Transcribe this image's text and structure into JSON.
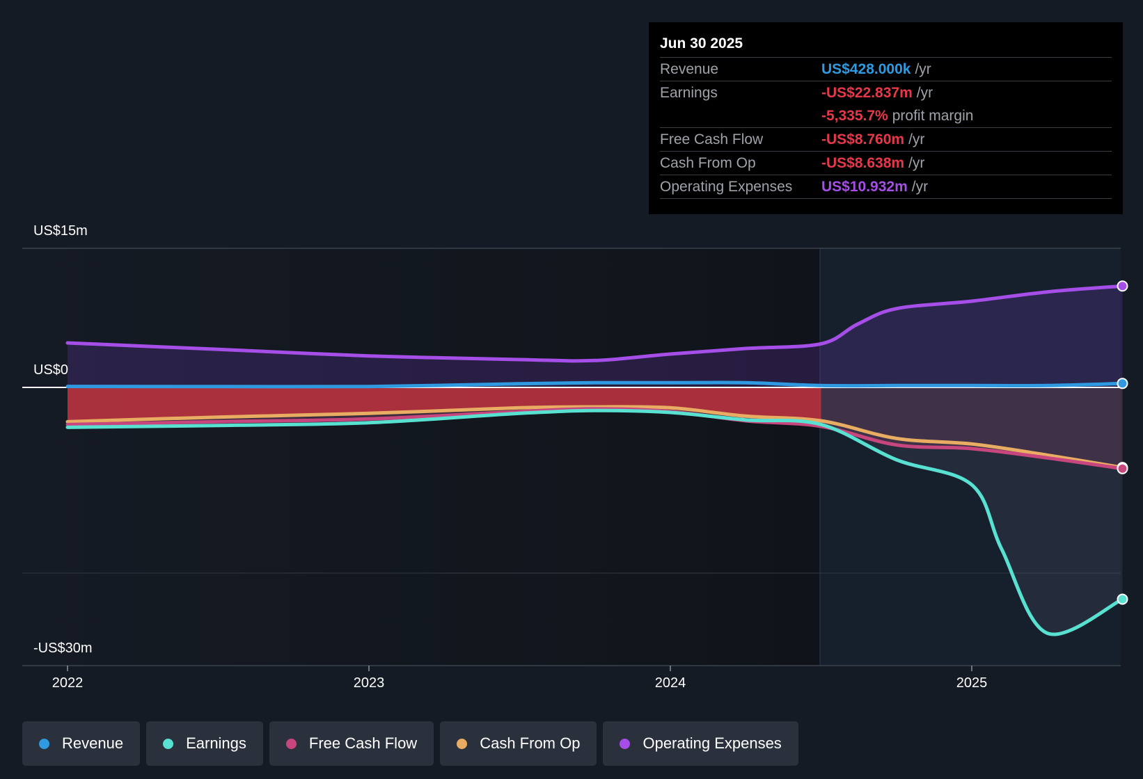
{
  "tooltip": {
    "date": "Jun 30 2025",
    "rows": [
      {
        "label": "Revenue",
        "value": "US$428.000k",
        "unit": "/yr",
        "color": "#2f9ae0"
      },
      {
        "label": "Earnings",
        "value": "-US$22.837m",
        "unit": "/yr",
        "color": "#e5384a"
      },
      {
        "label": "",
        "value": "-5,335.7%",
        "unit": "profit margin",
        "color": "#e5384a"
      },
      {
        "label": "Free Cash Flow",
        "value": "-US$8.760m",
        "unit": "/yr",
        "color": "#e5384a"
      },
      {
        "label": "Cash From Op",
        "value": "-US$8.638m",
        "unit": "/yr",
        "color": "#e5384a"
      },
      {
        "label": "Operating Expenses",
        "value": "US$10.932m",
        "unit": "/yr",
        "color": "#a64ee8"
      }
    ]
  },
  "legend": [
    {
      "label": "Revenue",
      "color": "#2f9ae0"
    },
    {
      "label": "Earnings",
      "color": "#58e1d1"
    },
    {
      "label": "Free Cash Flow",
      "color": "#c8467e"
    },
    {
      "label": "Cash From Op",
      "color": "#e8ad62"
    },
    {
      "label": "Operating Expenses",
      "color": "#a64ee8"
    }
  ],
  "chart_data": {
    "type": "line",
    "title": "",
    "xlabel": "",
    "ylabel": "",
    "y_axis_labels": {
      "top": "US$15m",
      "zero": "US$0",
      "bottom": "-US$30m"
    },
    "x_ticks": [
      2022,
      2023,
      2024,
      2025
    ],
    "xlim": [
      2021.85,
      2025.5
    ],
    "ylim": [
      -30,
      15
    ],
    "forecast_start": 2024.5,
    "series": [
      {
        "name": "Operating Expenses",
        "color": "#a64ee8",
        "x": [
          2022.0,
          2022.5,
          2023.0,
          2023.5,
          2023.75,
          2024.0,
          2024.25,
          2024.5,
          2024.62,
          2024.75,
          2025.0,
          2025.25,
          2025.5
        ],
        "values": [
          4.8,
          4.1,
          3.4,
          3.0,
          2.9,
          3.6,
          4.2,
          4.7,
          6.8,
          8.5,
          9.3,
          10.3,
          10.932
        ]
      },
      {
        "name": "Revenue",
        "color": "#2f9ae0",
        "x": [
          2022.0,
          2022.5,
          2023.0,
          2023.5,
          2023.75,
          2024.0,
          2024.25,
          2024.5,
          2024.75,
          2025.0,
          2025.25,
          2025.5
        ],
        "values": [
          0.1,
          0.1,
          0.1,
          0.4,
          0.5,
          0.5,
          0.5,
          0.2,
          0.2,
          0.2,
          0.2,
          0.428
        ]
      },
      {
        "name": "Cash From Op",
        "color": "#e8ad62",
        "x": [
          2022.0,
          2022.5,
          2023.0,
          2023.5,
          2023.75,
          2024.0,
          2024.25,
          2024.5,
          2024.75,
          2025.0,
          2025.25,
          2025.5
        ],
        "values": [
          -3.7,
          -3.2,
          -2.8,
          -2.2,
          -2.1,
          -2.2,
          -3.1,
          -3.6,
          -5.5,
          -6.1,
          -7.3,
          -8.638
        ]
      },
      {
        "name": "Free Cash Flow",
        "color": "#c8467e",
        "x": [
          2022.0,
          2022.5,
          2023.0,
          2023.5,
          2023.75,
          2024.0,
          2024.25,
          2024.5,
          2024.75,
          2025.0,
          2025.25,
          2025.5
        ],
        "values": [
          -4.0,
          -3.7,
          -3.4,
          -2.6,
          -2.3,
          -2.6,
          -3.6,
          -4.2,
          -6.2,
          -6.6,
          -7.6,
          -8.76
        ]
      },
      {
        "name": "Earnings",
        "color": "#58e1d1",
        "x": [
          2022.0,
          2022.5,
          2023.0,
          2023.5,
          2023.75,
          2024.0,
          2024.25,
          2024.5,
          2024.75,
          2025.0,
          2025.1,
          2025.25,
          2025.5
        ],
        "values": [
          -4.3,
          -4.1,
          -3.8,
          -2.8,
          -2.5,
          -2.7,
          -3.5,
          -4.0,
          -7.8,
          -10.5,
          -17.5,
          -26.5,
          -22.837
        ]
      }
    ]
  }
}
